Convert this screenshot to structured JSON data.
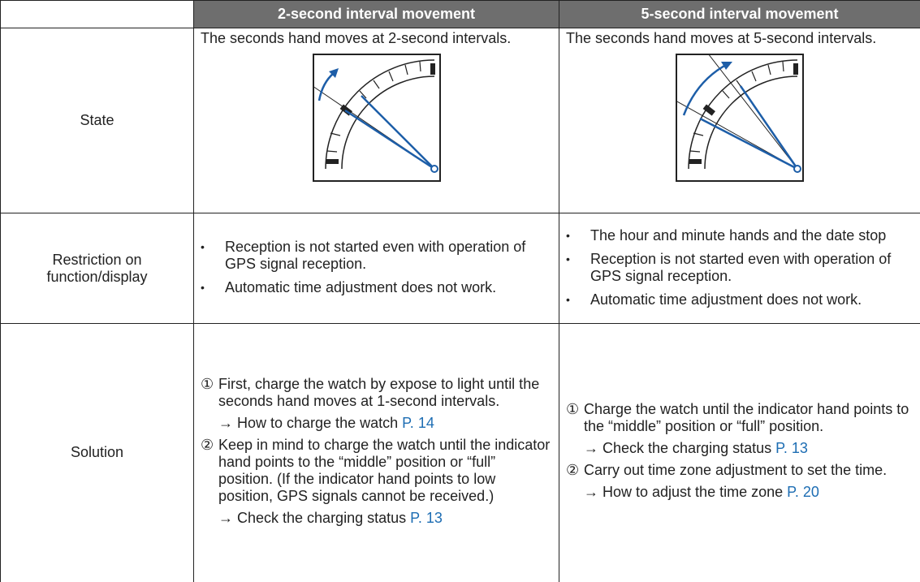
{
  "table": {
    "columns": [
      "2-second interval movement",
      "5-second interval movement"
    ],
    "rows": [
      {
        "label": "State",
        "cells": [
          "The seconds hand moves at 2-second intervals.",
          "The seconds hand moves at 5-second intervals."
        ]
      },
      {
        "label": "Restriction on function/display",
        "cells": [
          [
            "Reception is not started even with operation of GPS signal reception.",
            "Automatic time adjustment does not work."
          ],
          [
            "The hour and minute hands and the date stop",
            "Reception is not started even with operation of GPS signal reception.",
            "Automatic time adjustment does not work."
          ]
        ]
      },
      {
        "label": "Solution",
        "cells": [
          [
            {
              "marker": "①",
              "text": "First, charge the watch by expose to light until the seconds hand moves at 1-second intervals.",
              "ref": "→ How to charge the watch",
              "link": "P. 14"
            },
            {
              "marker": "②",
              "text": "Keep in mind to charge the watch until the indicator hand points to the “middle” position or “full” position. (If the indicator hand points to low position, GPS signals cannot be received.)",
              "ref": "→ Check the charging status",
              "link": "P. 13"
            }
          ],
          [
            {
              "marker": "①",
              "text": "Charge the watch until the indicator hand points to the “middle” position or “full” position.",
              "ref": "→ Check the charging status",
              "link": "P. 13"
            },
            {
              "marker": "②",
              "text": "Carry out time zone adjustment to set the time.",
              "ref": "→ How to adjust the time zone",
              "link": "P. 20"
            }
          ]
        ]
      }
    ]
  }
}
